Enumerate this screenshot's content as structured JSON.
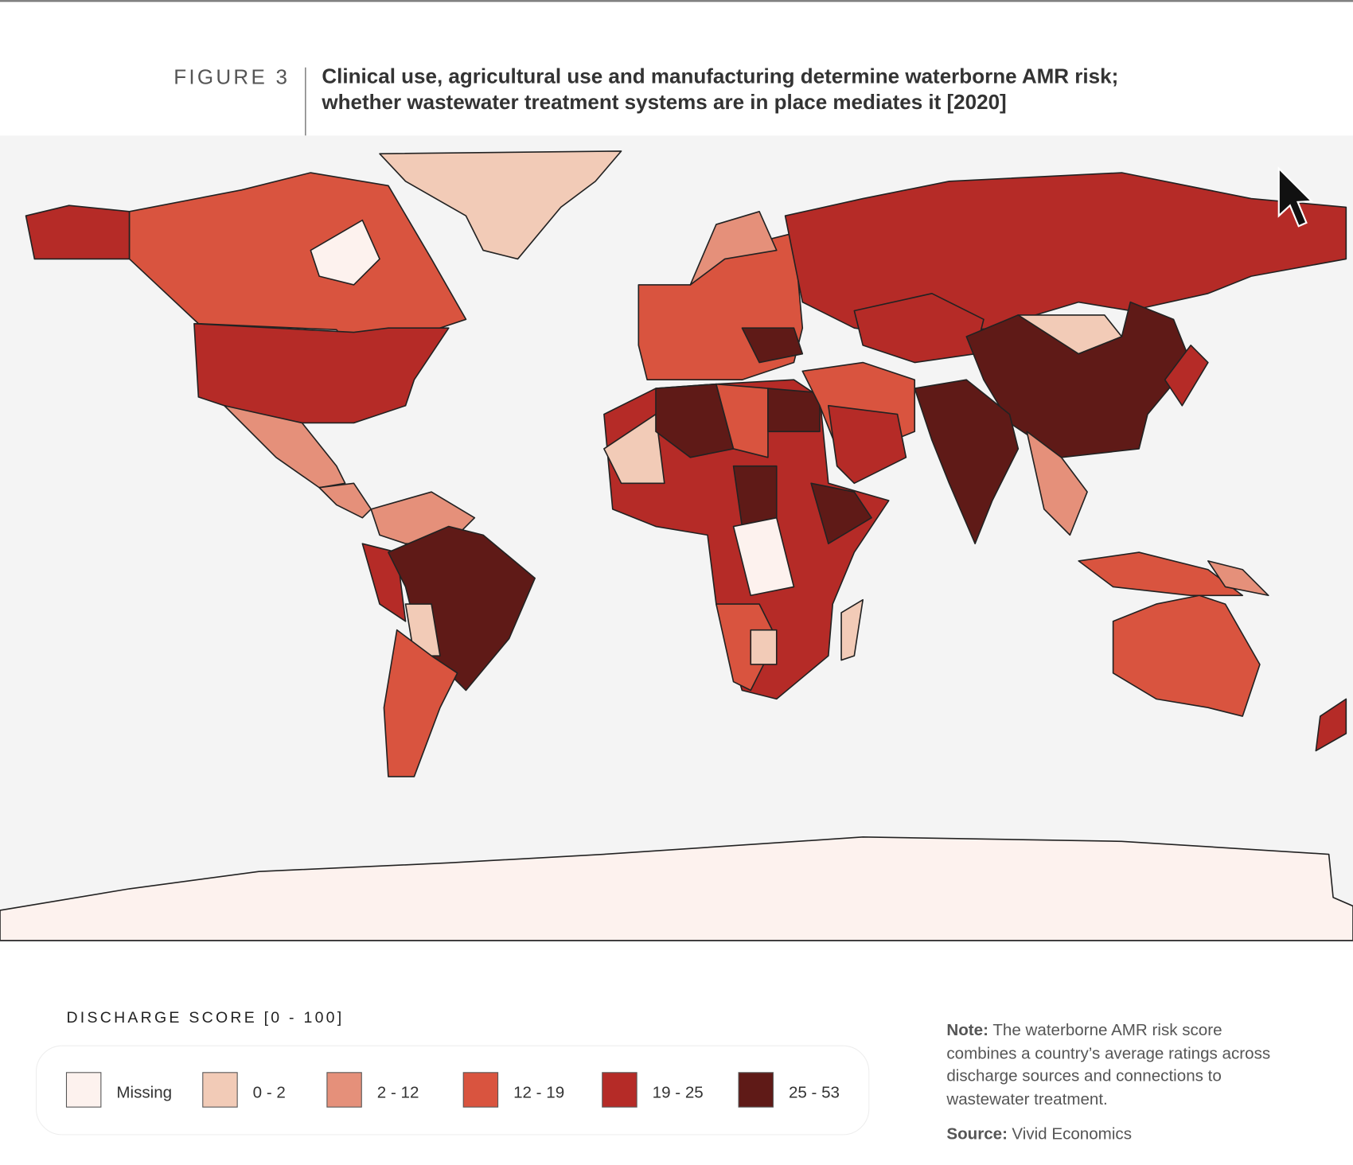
{
  "header": {
    "figure_label": "FIGURE 3",
    "title_lines": [
      "Clinical use, agricultural use and manufacturing determine waterborne AMR risk;",
      "whether wastewater treatment systems are in place mediates it [2020]"
    ]
  },
  "legend": {
    "title": "DISCHARGE SCORE [0 - 100]",
    "items": [
      {
        "label": "Missing",
        "color": "#fdf2ee"
      },
      {
        "label": "0 - 2",
        "color": "#f2cbb7"
      },
      {
        "label": "2 - 12",
        "color": "#e5907a"
      },
      {
        "label": "12 - 19",
        "color": "#d9543f"
      },
      {
        "label": "19 - 25",
        "color": "#b52b27"
      },
      {
        "label": "25 - 53",
        "color": "#5f1a17"
      }
    ]
  },
  "note": {
    "label": "Note:",
    "text_lines": [
      "The waterborne AMR risk score",
      "combines a country’s average ratings across",
      "discharge sources and connections to",
      "wastewater treatment."
    ]
  },
  "source": {
    "label": "Source:",
    "text": "Vivid Economics"
  }
}
